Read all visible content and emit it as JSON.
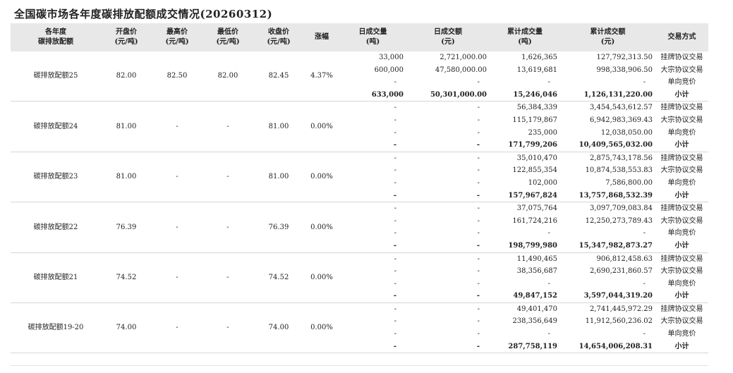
{
  "title": "全国碳市场各年度碳排放配额成交情况(20260312)",
  "headers": {
    "year": [
      "各年度",
      "碳排放配额"
    ],
    "open": [
      "开盘价",
      "(元/吨)"
    ],
    "high": [
      "最高价",
      "(元/吨)"
    ],
    "low": [
      "最低价",
      "(元/吨)"
    ],
    "close": [
      "收盘价",
      "(元/吨)"
    ],
    "change": [
      "涨幅"
    ],
    "day_vol": [
      "日成交量",
      "(吨)"
    ],
    "day_amt": [
      "日成交额",
      "(元)"
    ],
    "cum_vol": [
      "累计成交量",
      "(吨)"
    ],
    "cum_amt": [
      "累计成交额",
      "(元)"
    ],
    "method": [
      "交易方式"
    ]
  },
  "groups": [
    {
      "name": "碳排放配额25",
      "open": "82.00",
      "high": "82.50",
      "low": "82.00",
      "close": "82.45",
      "change": "4.37%",
      "rows": [
        {
          "day_vol": "33,000",
          "day_amt": "2,721,000.00",
          "cum_vol": "1,626,365",
          "cum_amt": "127,792,313.50",
          "method": "挂牌协议交易"
        },
        {
          "day_vol": "600,000",
          "day_amt": "47,580,000.00",
          "cum_vol": "13,619,681",
          "cum_amt": "998,338,906.50",
          "method": "大宗协议交易"
        },
        {
          "day_vol": "-",
          "day_amt": "-",
          "cum_vol": "-",
          "cum_amt": "-",
          "method": "单向竞价"
        },
        {
          "day_vol": "633,000",
          "day_amt": "50,301,000.00",
          "cum_vol": "15,246,046",
          "cum_amt": "1,126,131,220.00",
          "method": "小计"
        }
      ]
    },
    {
      "name": "碳排放配额24",
      "open": "81.00",
      "high": "-",
      "low": "-",
      "close": "81.00",
      "change": "0.00%",
      "rows": [
        {
          "day_vol": "-",
          "day_amt": "-",
          "cum_vol": "56,384,339",
          "cum_amt": "3,454,543,612.57",
          "method": "挂牌协议交易"
        },
        {
          "day_vol": "-",
          "day_amt": "-",
          "cum_vol": "115,179,867",
          "cum_amt": "6,942,983,369.43",
          "method": "大宗协议交易"
        },
        {
          "day_vol": "-",
          "day_amt": "-",
          "cum_vol": "235,000",
          "cum_amt": "12,038,050.00",
          "method": "单向竞价"
        },
        {
          "day_vol": "-",
          "day_amt": "-",
          "cum_vol": "171,799,206",
          "cum_amt": "10,409,565,032.00",
          "method": "小计"
        }
      ]
    },
    {
      "name": "碳排放配额23",
      "open": "81.00",
      "high": "-",
      "low": "-",
      "close": "81.00",
      "change": "0.00%",
      "rows": [
        {
          "day_vol": "-",
          "day_amt": "-",
          "cum_vol": "35,010,470",
          "cum_amt": "2,875,743,178.56",
          "method": "挂牌协议交易"
        },
        {
          "day_vol": "-",
          "day_amt": "-",
          "cum_vol": "122,855,354",
          "cum_amt": "10,874,538,553.83",
          "method": "大宗协议交易"
        },
        {
          "day_vol": "-",
          "day_amt": "-",
          "cum_vol": "102,000",
          "cum_amt": "7,586,800.00",
          "method": "单向竞价"
        },
        {
          "day_vol": "-",
          "day_amt": "-",
          "cum_vol": "157,967,824",
          "cum_amt": "13,757,868,532.39",
          "method": "小计"
        }
      ]
    },
    {
      "name": "碳排放配额22",
      "open": "76.39",
      "high": "-",
      "low": "-",
      "close": "76.39",
      "change": "0.00%",
      "rows": [
        {
          "day_vol": "-",
          "day_amt": "-",
          "cum_vol": "37,075,764",
          "cum_amt": "3,097,709,083.84",
          "method": "挂牌协议交易"
        },
        {
          "day_vol": "-",
          "day_amt": "-",
          "cum_vol": "161,724,216",
          "cum_amt": "12,250,273,789.43",
          "method": "大宗协议交易"
        },
        {
          "day_vol": "-",
          "day_amt": "-",
          "cum_vol": "-",
          "cum_amt": "-",
          "method": "单向竞价"
        },
        {
          "day_vol": "-",
          "day_amt": "-",
          "cum_vol": "198,799,980",
          "cum_amt": "15,347,982,873.27",
          "method": "小计"
        }
      ]
    },
    {
      "name": "碳排放配额21",
      "open": "74.52",
      "high": "-",
      "low": "-",
      "close": "74.52",
      "change": "0.00%",
      "rows": [
        {
          "day_vol": "-",
          "day_amt": "-",
          "cum_vol": "11,490,465",
          "cum_amt": "906,812,458.63",
          "method": "挂牌协议交易"
        },
        {
          "day_vol": "-",
          "day_amt": "-",
          "cum_vol": "38,356,687",
          "cum_amt": "2,690,231,860.57",
          "method": "大宗协议交易"
        },
        {
          "day_vol": "-",
          "day_amt": "-",
          "cum_vol": "-",
          "cum_amt": "-",
          "method": "单向竞价"
        },
        {
          "day_vol": "-",
          "day_amt": "-",
          "cum_vol": "49,847,152",
          "cum_amt": "3,597,044,319.20",
          "method": "小计"
        }
      ]
    },
    {
      "name": "碳排放配额19-20",
      "open": "74.00",
      "high": "-",
      "low": "-",
      "close": "74.00",
      "change": "0.00%",
      "rows": [
        {
          "day_vol": "-",
          "day_amt": "-",
          "cum_vol": "49,401,470",
          "cum_amt": "2,741,445,972.29",
          "method": "挂牌协议交易"
        },
        {
          "day_vol": "-",
          "day_amt": "-",
          "cum_vol": "238,356,649",
          "cum_amt": "11,912,560,236.02",
          "method": "大宗协议交易"
        },
        {
          "day_vol": "-",
          "day_amt": "-",
          "cum_vol": "-",
          "cum_amt": "-",
          "method": "单向竞价"
        },
        {
          "day_vol": "-",
          "day_amt": "-",
          "cum_vol": "287,758,119",
          "cum_amt": "14,654,006,208.31",
          "method": "小计"
        }
      ]
    }
  ]
}
